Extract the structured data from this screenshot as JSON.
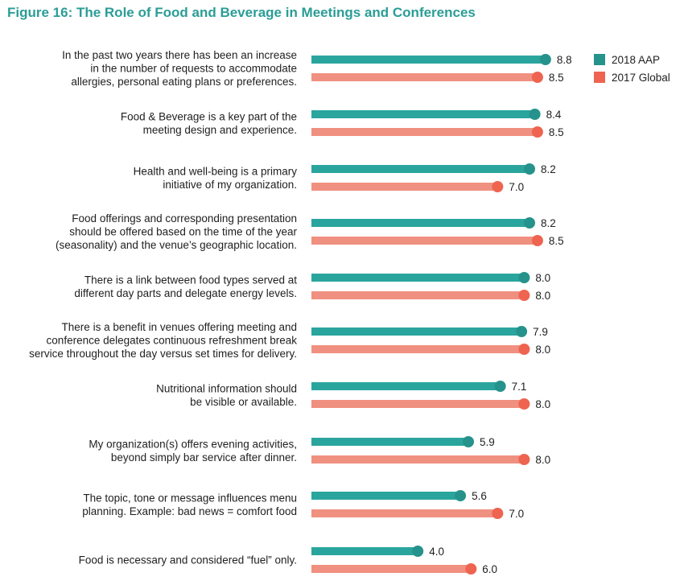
{
  "chart_data": {
    "type": "bar",
    "orientation": "horizontal",
    "title": "Figure 16: The Role of Food and Beverage in Meetings and Conferences",
    "categories": [
      [
        "In the past two years there has been an increase",
        "in the number of requests to accommodate",
        "allergies, personal eating plans or preferences."
      ],
      [
        "Food & Beverage is a key part of the",
        "meeting design and experience."
      ],
      [
        "Health and well-being is a primary",
        "initiative of my organization."
      ],
      [
        "Food offerings and corresponding presentation",
        "should be offered based on the time of the year",
        "(seasonality) and the venue’s geographic location."
      ],
      [
        "There is a link between food types served at",
        "different day parts and delegate energy levels."
      ],
      [
        "There is a benefit in venues offering meeting and",
        "conference delegates continuous refreshment break",
        "service throughout the day versus set times for delivery."
      ],
      [
        "Nutritional information should",
        "be visible or available."
      ],
      [
        "My organization(s) offers evening activities,",
        "beyond simply bar service after dinner."
      ],
      [
        "The topic, tone or message influences menu",
        "planning. Example: bad news = comfort food"
      ],
      [
        "Food is necessary and considered “fuel” only."
      ]
    ],
    "series": [
      {
        "name": "2018 AAP",
        "color": "#2aa59e",
        "dot_color": "#26928c",
        "values": [
          8.8,
          8.4,
          8.2,
          8.2,
          8.0,
          7.9,
          7.1,
          5.9,
          5.6,
          4.0
        ],
        "labels": [
          "8.8",
          "8.4",
          "8.2",
          "8.2",
          "8.0",
          "7.9",
          "7.1",
          "5.9",
          "5.6",
          "4.0"
        ]
      },
      {
        "name": "2017 Global",
        "color": "#f09080",
        "dot_color": "#ee6450",
        "values": [
          8.5,
          8.5,
          7.0,
          8.5,
          8.0,
          8.0,
          8.0,
          8.0,
          7.0,
          6.0
        ],
        "labels": [
          "8.5",
          "8.5",
          "7.0",
          "8.5",
          "8.0",
          "8.0",
          "8.0",
          "8.0",
          "7.0",
          "6.0"
        ]
      }
    ],
    "legend_position": "top-right",
    "grid": false
  }
}
